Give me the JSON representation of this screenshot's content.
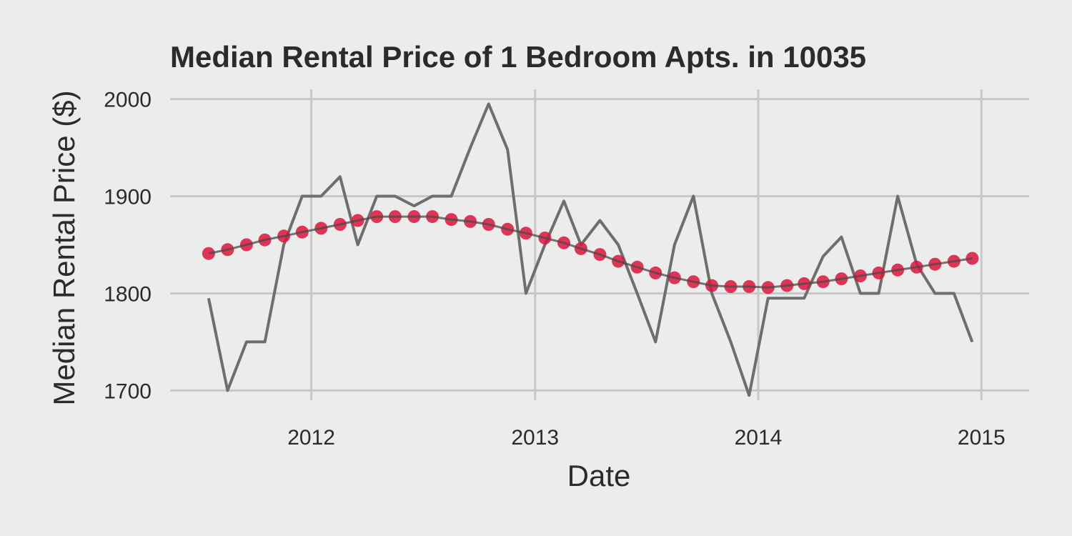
{
  "chart_data": {
    "type": "line",
    "title": "Median Rental Price of 1 Bedroom Apts. in 10035",
    "xlabel": "Date",
    "ylabel": "Median Rental Price ($)",
    "x_ticks": [
      "2012",
      "2013",
      "2014",
      "2015"
    ],
    "y_ticks": [
      "1700",
      "1800",
      "1900",
      "2000"
    ],
    "xlim": [
      "2011-05-15",
      "2015-03-20"
    ],
    "ylim": [
      1690,
      2010
    ],
    "grid": true,
    "legend": "none",
    "colors": {
      "observed": "#6e6e6e",
      "smoothed_points": "#dc143c",
      "smoothed_line": "#4a4a4a"
    },
    "series": [
      {
        "kind": "line",
        "x": [
          "2011-07-17",
          "2011-08-17",
          "2011-09-17",
          "2011-10-17",
          "2011-11-17",
          "2011-12-17",
          "2012-01-17",
          "2012-02-17",
          "2012-03-17",
          "2012-04-17",
          "2012-05-17",
          "2012-06-17",
          "2012-07-17",
          "2012-08-17",
          "2012-09-17",
          "2012-10-17",
          "2012-11-17",
          "2012-12-17",
          "2013-01-17",
          "2013-02-17",
          "2013-03-17",
          "2013-04-17",
          "2013-05-17",
          "2013-06-17",
          "2013-07-17",
          "2013-08-17",
          "2013-09-17",
          "2013-10-17",
          "2013-11-17",
          "2013-12-17",
          "2014-01-17",
          "2014-02-17",
          "2014-03-17",
          "2014-04-17",
          "2014-05-17",
          "2014-06-17",
          "2014-07-17",
          "2014-08-17",
          "2014-09-17",
          "2014-10-17",
          "2014-11-17",
          "2014-12-17"
        ],
        "values": [
          1795,
          1700,
          1750,
          1750,
          1850,
          1900,
          1900,
          1920,
          1850,
          1900,
          1900,
          1890,
          1900,
          1900,
          1950,
          1995,
          1948,
          1800,
          1850,
          1895,
          1850,
          1875,
          1850,
          1800,
          1750,
          1850,
          1900,
          1800,
          1750,
          1695,
          1795,
          1795,
          1795,
          1838,
          1858,
          1800,
          1800,
          1900,
          1830,
          1800,
          1800,
          1750
        ]
      },
      {
        "kind": "points",
        "x": [
          "2011-07-17",
          "2011-08-17",
          "2011-09-17",
          "2011-10-17",
          "2011-11-17",
          "2011-12-17",
          "2012-01-17",
          "2012-02-17",
          "2012-03-17",
          "2012-04-17",
          "2012-05-17",
          "2012-06-17",
          "2012-07-17",
          "2012-08-17",
          "2012-09-17",
          "2012-10-17",
          "2012-11-17",
          "2012-12-17",
          "2013-01-17",
          "2013-02-17",
          "2013-03-17",
          "2013-04-17",
          "2013-05-17",
          "2013-06-17",
          "2013-07-17",
          "2013-08-17",
          "2013-09-17",
          "2013-10-17",
          "2013-11-17",
          "2013-12-17",
          "2014-01-17",
          "2014-02-17",
          "2014-03-17",
          "2014-04-17",
          "2014-05-17",
          "2014-06-17",
          "2014-07-17",
          "2014-08-17",
          "2014-09-17",
          "2014-10-17",
          "2014-11-17",
          "2014-12-17"
        ],
        "values": [
          1841,
          1845,
          1850,
          1855,
          1859,
          1863,
          1867,
          1871,
          1875,
          1879,
          1879,
          1879,
          1879,
          1876,
          1874,
          1871,
          1866,
          1862,
          1857,
          1852,
          1846,
          1840,
          1833,
          1827,
          1821,
          1816,
          1812,
          1808,
          1807,
          1807,
          1806,
          1808,
          1810,
          1812,
          1815,
          1818,
          1821,
          1824,
          1827,
          1830,
          1833,
          1836
        ]
      }
    ]
  }
}
